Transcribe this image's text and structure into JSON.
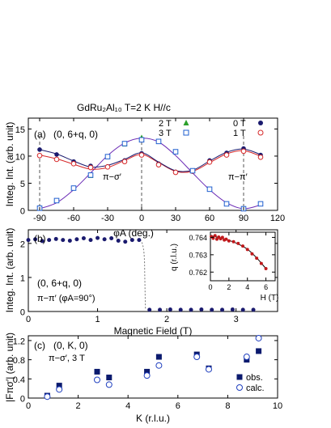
{
  "figure_title": "GdRu₂Al₁₀  T=2 K  H//c",
  "chart_data": [
    {
      "type": "line",
      "panel_label": "(a)",
      "annotation": "(0, 6+q, 0)",
      "mode_labels": [
        "π−σ′",
        "π−π′"
      ],
      "xlabel": "φA (deg.)",
      "ylabel": "Integ. Int. (arb. unit)",
      "xlim": [
        -100,
        120
      ],
      "ylim": [
        0,
        17
      ],
      "xticks": [
        "-90",
        "-60",
        "-30",
        "0",
        "30",
        "60",
        "90",
        "120"
      ],
      "xtick_values": [
        -90,
        -60,
        -30,
        0,
        30,
        60,
        90,
        120
      ],
      "yticks": [
        "0",
        "5",
        "10",
        "15"
      ],
      "ytick_values": [
        0,
        5,
        10,
        15
      ],
      "legend": [
        {
          "label": "2 T",
          "marker": "triangle",
          "color": "#2ca02c"
        },
        {
          "label": "0 T",
          "marker": "filled-circle",
          "color": "#1a1a6e"
        },
        {
          "label": "3 T",
          "marker": "open-square",
          "color": "#1f5fcf"
        },
        {
          "label": "1 T",
          "marker": "open-circle",
          "color": "#d62728"
        }
      ],
      "series": [
        {
          "name": "0 T",
          "marker": "filled-circle",
          "color": "#1a1a6e",
          "x": [
            -90,
            -75,
            -60,
            -45,
            -30,
            -15,
            0,
            15,
            30,
            45,
            60,
            75,
            90,
            105
          ],
          "y": [
            11.2,
            10.3,
            9.0,
            8.2,
            8.1,
            9.2,
            10.5,
            8.6,
            7.1,
            7.3,
            9.2,
            10.6,
            11.4,
            10.2
          ]
        },
        {
          "name": "1 T",
          "marker": "open-circle",
          "color": "#d62728",
          "x": [
            -90,
            -75,
            -60,
            -45,
            -30,
            -15,
            0,
            15,
            30,
            45,
            60,
            75,
            90,
            105
          ],
          "y": [
            10.1,
            9.4,
            8.6,
            7.9,
            8.0,
            9.0,
            10.2,
            8.4,
            7.0,
            7.2,
            8.9,
            10.2,
            10.9,
            9.8
          ]
        },
        {
          "name": "2 T",
          "marker": "triangle",
          "color": "#2ca02c",
          "x": [
            -45,
            -15,
            0
          ],
          "y": [
            6.4,
            12.2,
            13.4
          ]
        },
        {
          "name": "3 T",
          "marker": "open-square",
          "color": "#1f5fcf",
          "x": [
            -90,
            -75,
            -60,
            -45,
            -30,
            -15,
            0,
            15,
            30,
            45,
            60,
            75,
            90,
            105
          ],
          "y": [
            0.4,
            1.8,
            4.1,
            6.5,
            9.9,
            12.3,
            13.0,
            12.7,
            10.8,
            7.3,
            3.9,
            1.2,
            0.3,
            1.2
          ]
        }
      ],
      "fit_curves": [
        {
          "color": "#6b2bb5",
          "y": [
            0.3,
            1.4,
            3.8,
            6.9,
            10.1,
            12.4,
            13.3,
            12.6,
            10.1,
            6.9,
            3.8,
            1.4,
            0.3,
            1.0
          ]
        },
        {
          "color": "#d62728",
          "y": [
            10.2,
            9.5,
            8.5,
            7.6,
            7.9,
            9.2,
            10.3,
            8.8,
            7.2,
            7.2,
            8.8,
            10.4,
            11.0,
            10.0
          ]
        },
        {
          "color": "#1a1a6e",
          "y": [
            11.2,
            10.4,
            9.1,
            8.0,
            8.3,
            9.4,
            10.6,
            8.9,
            7.3,
            7.4,
            9.1,
            10.7,
            11.3,
            10.3
          ]
        }
      ],
      "guide_lines_x": [
        -90,
        0,
        90
      ]
    },
    {
      "type": "line",
      "panel_label": "(b)",
      "annotation": "(0, 6+q, 0)",
      "annotation2": "π−π′ (φA=90°)",
      "xlabel": "Magnetic Field (T)",
      "ylabel": "Integ. Int. (arb. unit)",
      "xlim": [
        0,
        3.6
      ],
      "ylim": [
        0,
        2.4
      ],
      "xticks": [
        "0",
        "1",
        "2",
        "3"
      ],
      "xtick_values": [
        0,
        1,
        2,
        3
      ],
      "yticks": [
        "0",
        "1",
        "2"
      ],
      "ytick_values": [
        0,
        1,
        2
      ],
      "series": [
        {
          "name": "data",
          "marker": "filled-circle",
          "color": "#1a1a6e",
          "x": [
            0,
            0.1,
            0.2,
            0.3,
            0.4,
            0.5,
            0.6,
            0.7,
            0.8,
            0.9,
            1.0,
            1.1,
            1.2,
            1.3,
            1.4,
            1.5,
            1.6,
            1.75,
            1.9,
            2.05,
            2.2,
            2.35,
            2.5,
            2.65,
            2.8,
            2.95,
            3.1,
            3.25
          ],
          "y": [
            2.1,
            2.12,
            2.07,
            2.1,
            2.13,
            2.1,
            2.08,
            2.12,
            2.15,
            2.1,
            2.16,
            2.12,
            2.15,
            2.08,
            2.05,
            2.1,
            2.1,
            0.05,
            0.05,
            0.06,
            0.05,
            0.05,
            0.06,
            0.05,
            0.05,
            0.06,
            0.05,
            0.05
          ]
        }
      ],
      "transition_field": 1.68,
      "inset": {
        "xlabel": "H (T)",
        "ylabel": "q (r.l.u.)",
        "xlim": [
          0,
          7
        ],
        "ylim": [
          0.7615,
          0.7643
        ],
        "xticks": [
          "0",
          "2",
          "4",
          "6"
        ],
        "xtick_values": [
          0,
          2,
          4,
          6
        ],
        "yticks": [
          "0.762",
          "0.763",
          "0.764"
        ],
        "ytick_values": [
          0.762,
          0.763,
          0.764
        ],
        "series": [
          {
            "name": "q",
            "marker": "filled-circle",
            "color": "#c0191c",
            "x": [
              0.1,
              0.3,
              0.5,
              0.7,
              0.9,
              1.1,
              1.3,
              1.5,
              1.7,
              2.0,
              2.5,
              3.0,
              3.5,
              4.0,
              4.5,
              5.0,
              5.5,
              6.0
            ],
            "y": [
              0.76405,
              0.76395,
              0.7641,
              0.7639,
              0.76402,
              0.76392,
              0.764,
              0.76385,
              0.7639,
              0.7638,
              0.76375,
              0.76365,
              0.7635,
              0.7633,
              0.76305,
              0.7628,
              0.7625,
              0.7622
            ]
          }
        ],
        "fit": {
          "x": [
            0,
            1,
            2,
            3,
            4,
            5,
            6
          ],
          "y": [
            0.7641,
            0.76398,
            0.76383,
            0.76362,
            0.76332,
            0.76282,
            0.7622
          ]
        }
      }
    },
    {
      "type": "scatter",
      "panel_label": "(c)",
      "annotation": "(0, K, 0)",
      "annotation2": "π−σ′, 3 T",
      "xlabel": "K (r.l.u.)",
      "ylabel": "|Fπσ′| (arb. unit)",
      "xlim": [
        0,
        10
      ],
      "ylim": [
        0,
        1.3
      ],
      "xticks": [
        "0",
        "2",
        "4",
        "6",
        "8",
        "10"
      ],
      "xtick_values": [
        0,
        2,
        4,
        6,
        8,
        10
      ],
      "yticks": [
        "0",
        "0.4",
        "0.8",
        "1.2"
      ],
      "ytick_values": [
        0,
        0.4,
        0.8,
        1.2
      ],
      "legend": [
        {
          "label": "obs.",
          "marker": "filled-square",
          "color": "#0b1a6e"
        },
        {
          "label": "calc.",
          "marker": "open-circle",
          "color": "#1f3fbf"
        }
      ],
      "series": [
        {
          "name": "obs.",
          "marker": "filled-square",
          "color": "#0b1a6e",
          "x": [
            0.76,
            1.24,
            2.76,
            3.24,
            4.76,
            5.24,
            6.76,
            7.24,
            8.76,
            9.24
          ],
          "y": [
            0.05,
            0.26,
            0.55,
            0.43,
            0.55,
            0.86,
            0.91,
            0.62,
            0.8,
            0.98
          ]
        },
        {
          "name": "calc.",
          "marker": "open-circle",
          "color": "#1f3fbf",
          "x": [
            0.76,
            1.24,
            2.76,
            3.24,
            4.76,
            5.24,
            6.76,
            7.24,
            8.76,
            9.24
          ],
          "y": [
            0.03,
            0.18,
            0.38,
            0.28,
            0.47,
            0.68,
            0.86,
            0.6,
            0.86,
            1.25
          ]
        }
      ]
    }
  ]
}
